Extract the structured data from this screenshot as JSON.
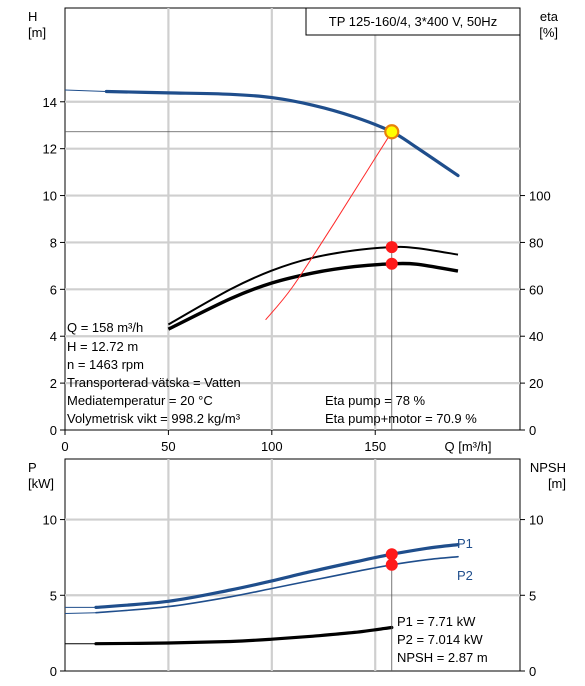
{
  "chart_data": [
    {
      "type": "line",
      "title": "TP 125-160/4, 3*400 V, 50Hz",
      "xlabel": "Q [m³/h]",
      "ylabel": "H\n[m]",
      "y2label": "eta\n[%]",
      "xlim": [
        0,
        220
      ],
      "ylim": [
        0,
        18
      ],
      "y2lim": [
        0,
        180
      ],
      "xticks": [
        0,
        50,
        100,
        150
      ],
      "yticks": [
        0,
        2,
        4,
        6,
        8,
        10,
        12,
        14
      ],
      "y2ticks": [
        0,
        20,
        40,
        60,
        80,
        100
      ],
      "grid": true,
      "series": [
        {
          "key": "head",
          "color": "#1f4e8c",
          "points": [
            [
              0,
              14.5
            ],
            [
              20,
              14.44
            ],
            [
              50,
              14.38
            ],
            [
              80,
              14.32
            ],
            [
              100,
              14.18
            ],
            [
              120,
              13.85
            ],
            [
              140,
              13.35
            ],
            [
              158,
              12.72
            ],
            [
              170,
              12.05
            ],
            [
              190,
              10.85
            ]
          ]
        },
        {
          "key": "eta_pump",
          "axis": "y2",
          "color": "#000000",
          "points": [
            [
              50,
              45
            ],
            [
              80,
              60
            ],
            [
              100,
              68
            ],
            [
              120,
              73.5
            ],
            [
              140,
              76.6
            ],
            [
              158,
              78
            ],
            [
              170,
              77.6
            ],
            [
              190,
              74.8
            ]
          ]
        },
        {
          "key": "eta_total",
          "axis": "y2",
          "color": "#000000",
          "points": [
            [
              50,
              43
            ],
            [
              80,
              56
            ],
            [
              100,
              62.7
            ],
            [
              120,
              67
            ],
            [
              140,
              69.7
            ],
            [
              158,
              70.9
            ],
            [
              170,
              70.7
            ],
            [
              190,
              67.8
            ]
          ]
        },
        {
          "key": "system",
          "color": "#ff2a2a",
          "points": [
            [
              97,
              4.7
            ],
            [
              110,
              6.1
            ],
            [
              130,
              8.8
            ],
            [
              145,
              10.9
            ],
            [
              158,
              12.72
            ]
          ]
        }
      ],
      "operating_point": {
        "x": 158,
        "head": 12.72,
        "eta_pump": 78,
        "eta_total": 70.9
      },
      "info_left": [
        "Q = 158 m³/h",
        "H = 12.72 m",
        "n = 1463 rpm",
        "Transporterad vätska = Vatten",
        "Mediatemperatur = 20 °C",
        "Volymetrisk vikt = 998.2 kg/m³"
      ],
      "info_right": [
        "Eta pump = 78 %",
        "Eta pump+motor = 70.9 %"
      ]
    },
    {
      "type": "line",
      "ylabel": "P\n[kW]",
      "y2label": "NPSH\n[m]",
      "xlim": [
        0,
        220
      ],
      "ylim": [
        0,
        14
      ],
      "y2lim": [
        0,
        14
      ],
      "yticks": [
        0,
        5,
        10
      ],
      "y2ticks": [
        0,
        5,
        10
      ],
      "grid": true,
      "series": [
        {
          "name": "P1",
          "color": "#1f4e8c",
          "points": [
            [
              0,
              4.2
            ],
            [
              15,
              4.2
            ],
            [
              50,
              4.6
            ],
            [
              80,
              5.35
            ],
            [
              100,
              5.95
            ],
            [
              120,
              6.6
            ],
            [
              140,
              7.2
            ],
            [
              158,
              7.71
            ],
            [
              175,
              8.1
            ],
            [
              190,
              8.35
            ]
          ]
        },
        {
          "name": "P2",
          "color": "#1f4e8c",
          "points": [
            [
              0,
              3.8
            ],
            [
              15,
              3.85
            ],
            [
              50,
              4.25
            ],
            [
              80,
              4.9
            ],
            [
              100,
              5.45
            ],
            [
              120,
              6.0
            ],
            [
              140,
              6.55
            ],
            [
              158,
              7.014
            ],
            [
              175,
              7.35
            ],
            [
              190,
              7.55
            ]
          ]
        },
        {
          "key": "npsh",
          "color": "#000000",
          "points": [
            [
              0,
              1.8
            ],
            [
              15,
              1.8
            ],
            [
              50,
              1.85
            ],
            [
              80,
              1.95
            ],
            [
              100,
              2.1
            ],
            [
              120,
              2.3
            ],
            [
              140,
              2.55
            ],
            [
              158,
              2.87
            ]
          ]
        }
      ],
      "operating_point": {
        "x": 158,
        "P1": 7.71,
        "P2": 7.014
      },
      "info_right": [
        "P1 = 7.71 kW",
        "P2 = 7.014 kW",
        "NPSH = 2.87 m"
      ]
    }
  ]
}
